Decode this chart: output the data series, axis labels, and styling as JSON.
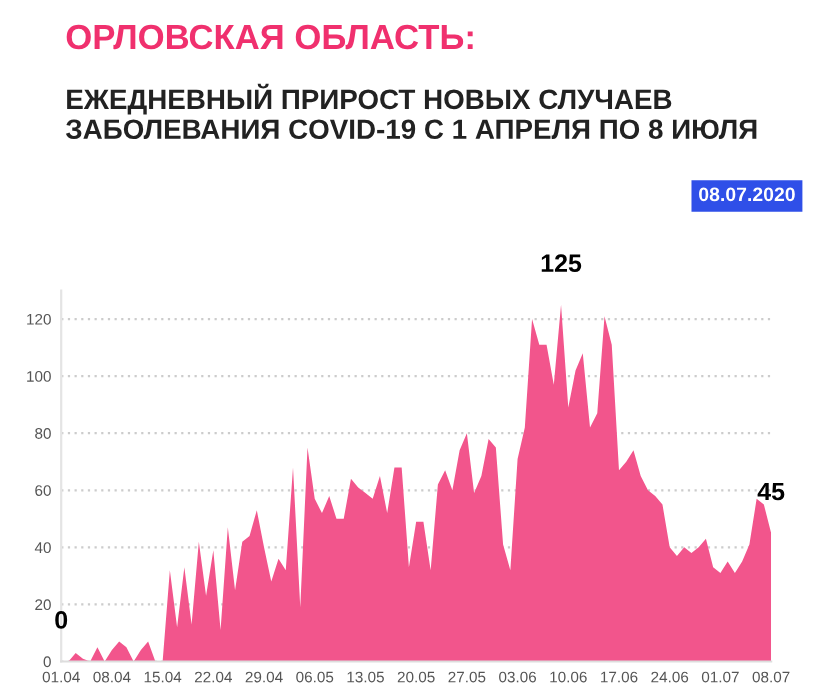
{
  "chart_data": {
    "type": "area",
    "title": "ОРЛОВСКАЯ ОБЛАСТЬ:",
    "subtitle": "ЕЖЕДНЕВНЫЙ ПРИРОСТ НОВЫХ СЛУЧАЕВ ЗАБОЛЕВАНИЯ COVID-19 С 1 АПРЕЛЯ ПО 8 ИЮЛЯ",
    "x": [
      "2020-04-01",
      "2020-04-02",
      "2020-04-03",
      "2020-04-04",
      "2020-04-05",
      "2020-04-06",
      "2020-04-07",
      "2020-04-08",
      "2020-04-09",
      "2020-04-10",
      "2020-04-11",
      "2020-04-12",
      "2020-04-13",
      "2020-04-14",
      "2020-04-15",
      "2020-04-16",
      "2020-04-17",
      "2020-04-18",
      "2020-04-19",
      "2020-04-20",
      "2020-04-21",
      "2020-04-22",
      "2020-04-23",
      "2020-04-24",
      "2020-04-25",
      "2020-04-26",
      "2020-04-27",
      "2020-04-28",
      "2020-04-29",
      "2020-04-30",
      "2020-05-01",
      "2020-05-02",
      "2020-05-03",
      "2020-05-04",
      "2020-05-05",
      "2020-05-06",
      "2020-05-07",
      "2020-05-08",
      "2020-05-09",
      "2020-05-10",
      "2020-05-11",
      "2020-05-12",
      "2020-05-13",
      "2020-05-14",
      "2020-05-15",
      "2020-05-16",
      "2020-05-17",
      "2020-05-18",
      "2020-05-19",
      "2020-05-20",
      "2020-05-21",
      "2020-05-22",
      "2020-05-23",
      "2020-05-24",
      "2020-05-25",
      "2020-05-26",
      "2020-05-27",
      "2020-05-28",
      "2020-05-29",
      "2020-05-30",
      "2020-05-31",
      "2020-06-01",
      "2020-06-02",
      "2020-06-03",
      "2020-06-04",
      "2020-06-05",
      "2020-06-06",
      "2020-06-07",
      "2020-06-08",
      "2020-06-09",
      "2020-06-10",
      "2020-06-11",
      "2020-06-12",
      "2020-06-13",
      "2020-06-14",
      "2020-06-15",
      "2020-06-16",
      "2020-06-17",
      "2020-06-18",
      "2020-06-19",
      "2020-06-20",
      "2020-06-21",
      "2020-06-22",
      "2020-06-23",
      "2020-06-24",
      "2020-06-25",
      "2020-06-26",
      "2020-06-27",
      "2020-06-28",
      "2020-06-29",
      "2020-06-30",
      "2020-07-01",
      "2020-07-02",
      "2020-07-03",
      "2020-07-04",
      "2020-07-05",
      "2020-07-06",
      "2020-07-07",
      "2020-07-08"
    ],
    "series": [
      {
        "color": "#f2558c",
        "values": [
          0,
          0,
          3,
          1,
          0,
          5,
          0,
          4,
          7,
          5,
          0,
          4,
          7,
          0,
          0,
          32,
          12,
          33,
          13,
          42,
          23,
          39,
          11,
          47,
          25,
          42,
          44,
          53,
          40,
          28,
          36,
          32,
          68,
          19,
          75,
          57,
          52,
          58,
          50,
          50,
          64,
          61,
          59,
          57,
          65,
          52,
          68,
          68,
          33,
          49,
          49,
          32,
          62,
          67,
          60,
          74,
          80,
          59,
          65,
          78,
          75,
          41,
          32,
          71,
          82,
          120,
          111,
          111,
          97,
          125,
          89,
          102,
          108,
          82,
          87,
          121,
          111,
          67,
          70,
          74,
          65,
          60,
          58,
          55,
          40,
          37,
          40,
          38,
          40,
          43,
          33,
          31,
          35,
          31,
          35,
          41,
          57,
          55,
          45
        ]
      }
    ],
    "xlim": [
      "2020-04-01",
      "2020-07-08"
    ],
    "xticks": [
      {
        "value": "2020-04-01",
        "label": "01.04"
      },
      {
        "value": "2020-04-08",
        "label": "08.04"
      },
      {
        "value": "2020-04-15",
        "label": "15.04"
      },
      {
        "value": "2020-04-22",
        "label": "22.04"
      },
      {
        "value": "2020-04-29",
        "label": "29.04"
      },
      {
        "value": "2020-05-06",
        "label": "06.05"
      },
      {
        "value": "2020-05-13",
        "label": "13.05"
      },
      {
        "value": "2020-05-20",
        "label": "20.05"
      },
      {
        "value": "2020-05-27",
        "label": "27.05"
      },
      {
        "value": "2020-06-03",
        "label": "03.06"
      },
      {
        "value": "2020-06-10",
        "label": "10.06"
      },
      {
        "value": "2020-06-17",
        "label": "17.06"
      },
      {
        "value": "2020-06-24",
        "label": "24.06"
      },
      {
        "value": "2020-07-01",
        "label": "01.07"
      },
      {
        "value": "2020-07-08",
        "label": "08.07"
      }
    ],
    "ylim": [
      0,
      130
    ],
    "yticks": [
      0,
      20,
      40,
      60,
      80,
      100,
      120
    ],
    "grid": "y",
    "annotations": [
      {
        "text": "0",
        "x": "2020-04-01",
        "y": 0
      },
      {
        "text": "125",
        "x": "2020-06-09",
        "y": 125
      },
      {
        "text": "45",
        "x": "2020-07-08",
        "y": 45
      },
      "08.07.2020"
    ]
  }
}
